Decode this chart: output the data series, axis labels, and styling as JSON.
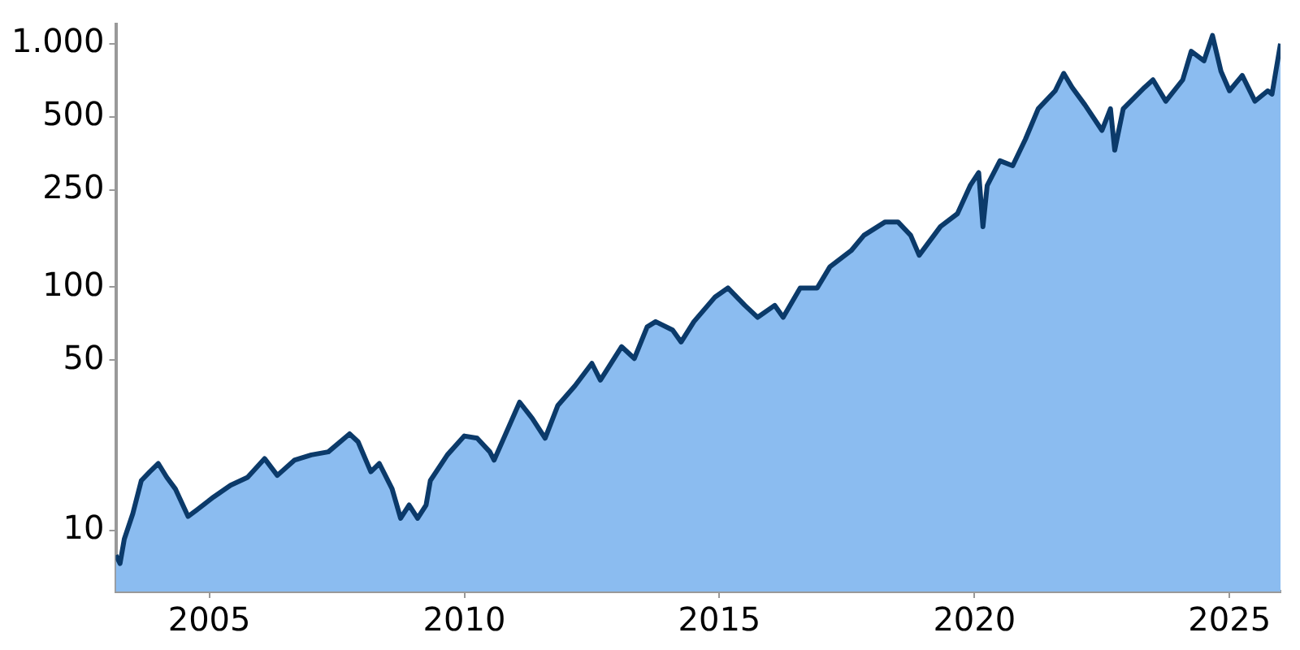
{
  "chart_data": {
    "type": "area",
    "log": "y",
    "x": [
      "2003-03",
      "2003-04",
      "2003-05",
      "2003-07",
      "2003-09",
      "2003-11",
      "2004-01",
      "2004-03",
      "2004-05",
      "2004-08",
      "2004-10",
      "2005-02",
      "2005-06",
      "2005-10",
      "2006-02",
      "2006-05",
      "2006-09",
      "2007-01",
      "2007-05",
      "2007-10",
      "2007-12",
      "2008-03",
      "2008-05",
      "2008-08",
      "2008-10",
      "2008-12",
      "2009-02",
      "2009-04",
      "2009-05",
      "2009-09",
      "2010-01",
      "2010-04",
      "2010-07",
      "2010-08",
      "2011-02",
      "2011-05",
      "2011-08",
      "2011-11",
      "2012-03",
      "2012-07",
      "2012-09",
      "2013-02",
      "2013-05",
      "2013-08",
      "2013-10",
      "2014-02",
      "2014-04",
      "2014-07",
      "2014-12",
      "2015-03",
      "2015-07",
      "2015-10",
      "2016-02",
      "2016-04",
      "2016-08",
      "2016-12",
      "2017-03",
      "2017-08",
      "2017-11",
      "2018-04",
      "2018-07",
      "2018-10",
      "2018-12",
      "2019-05",
      "2019-09",
      "2019-12",
      "2020-02",
      "2020-03",
      "2020-04",
      "2020-07",
      "2020-10",
      "2021-01",
      "2021-04",
      "2021-08",
      "2021-10",
      "2021-12",
      "2022-03",
      "2022-07",
      "2022-09",
      "2022-10",
      "2022-12",
      "2023-05",
      "2023-07",
      "2023-10",
      "2024-02",
      "2024-04",
      "2024-07",
      "2024-09",
      "2024-11",
      "2025-01",
      "2025-04",
      "2025-07",
      "2025-10",
      "2025-11",
      "2026-01"
    ],
    "series": [
      {
        "color": "#0b3a6a",
        "values": [
          7.9,
          7.3,
          9.2,
          11.7,
          16,
          17.4,
          18.8,
          16.5,
          14.8,
          11.4,
          12.1,
          13.7,
          15.3,
          16.5,
          19.7,
          16.8,
          19.4,
          20.4,
          21,
          24.9,
          23.1,
          17.4,
          18.8,
          14.8,
          11.2,
          12.7,
          11.2,
          12.7,
          16,
          20.4,
          24.4,
          23.9,
          21,
          19.4,
          33.6,
          28.8,
          23.9,
          32.6,
          39.2,
          48.5,
          41.4,
          56.8,
          50.8,
          68.5,
          72,
          66.5,
          59.4,
          72,
          91,
          99,
          84,
          75,
          84,
          75,
          99,
          99,
          121,
          141,
          163,
          185,
          185,
          163,
          135,
          177,
          200,
          261,
          295,
          177,
          261,
          330,
          315,
          405,
          540,
          640,
          755,
          660,
          560,
          440,
          540,
          365,
          540,
          660,
          710,
          580,
          710,
          930,
          850,
          1080,
          770,
          640,
          740,
          580,
          640,
          620,
          1000
        ]
      }
    ],
    "xlim": [
      "2003-03",
      "2026-01"
    ],
    "xticks": [
      "2005",
      "2010",
      "2015",
      "2020",
      "2025"
    ],
    "ylim": [
      5.6,
      1200
    ],
    "yticks": [
      10,
      50,
      100,
      250,
      500,
      {
        "value": 1000,
        "label": "1.000"
      }
    ]
  }
}
